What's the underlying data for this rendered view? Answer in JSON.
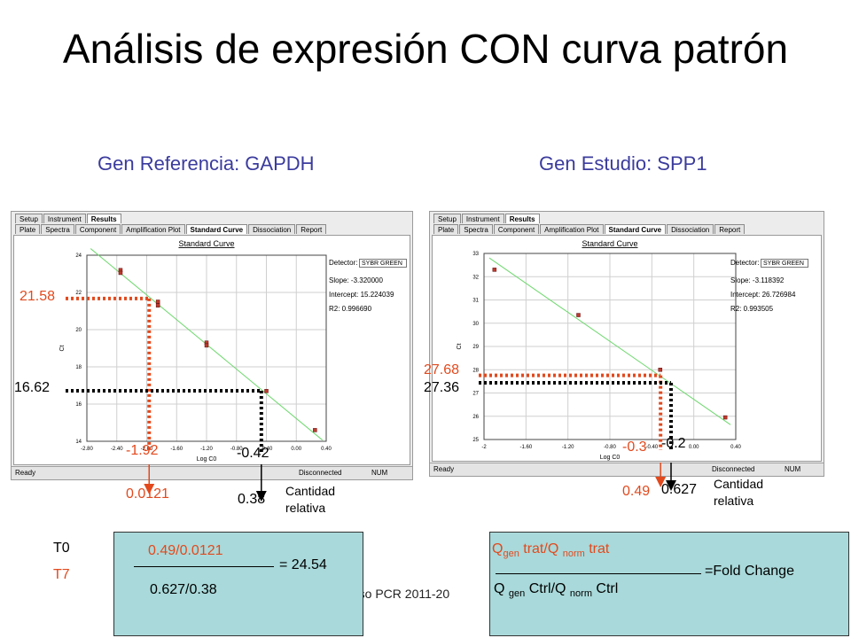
{
  "slide": {
    "title": "Análisis de expresión CON curva patrón",
    "subtitle_left": "Gen Referencia: GAPDH",
    "subtitle_right": "Gen Estudio: SPP1",
    "footer_partial": "rso PCR 2011-20"
  },
  "colors": {
    "regression_line": "#6fd86f",
    "data_point": "#c0392b",
    "annotation_red": "#e2491d",
    "annotation_black": "#000000",
    "formula_bg": "#a9d9da",
    "subtitle": "#3b3b9e"
  },
  "software": {
    "tabs_row1": [
      "Setup",
      "Instrument",
      "Results"
    ],
    "tabs_row2": [
      "Plate",
      "Spectra",
      "Component",
      "Amplification Plot",
      "Standard Curve",
      "Dissociation",
      "Report"
    ],
    "active_tab": "Standard Curve",
    "chart_title": "Standard Curve",
    "status_ready": "Ready",
    "status_disconnected": "Disconnected",
    "status_num": "NUM"
  },
  "annotations_left": {
    "ct_treated": "21.58",
    "ct_control": "16.62",
    "logc0_treated": "-1.92",
    "logc0_control": "-0.42",
    "qty_treated": "0.0121",
    "qty_control": "0.38",
    "relative_qty_label": "Cantidad relativa"
  },
  "annotations_right": {
    "ct_treated": "27.68",
    "ct_control": "27.36",
    "logc0_treated": "-0.3",
    "logc0_control": "-0.2",
    "qty_treated": "0.49",
    "qty_control": "0.627",
    "relative_qty_label": "Cantidad relativa"
  },
  "legend_times": {
    "t0": "T0",
    "t7": "T7"
  },
  "formula_left": {
    "numerator": "0.49/0.0121",
    "denominator": "0.627/0.38",
    "result": "= 24.54"
  },
  "formula_right": {
    "num_Q": "Q",
    "num_gen": "gen",
    "num_mid": " trat/Q ",
    "num_norm": "norm",
    "num_end": " trat",
    "den_Q": "Q ",
    "den_gen": "gen",
    "den_mid": " Ctrl/Q ",
    "den_norm": "norm",
    "den_end": " Ctrl",
    "result": "=Fold Change"
  },
  "chart_data": [
    {
      "type": "scatter",
      "title": "Standard Curve",
      "xlabel": "Log C0",
      "ylabel": "Ct",
      "xlim": [
        -2.8,
        0.4
      ],
      "ylim": [
        14,
        24
      ],
      "xticks": [
        -2.8,
        -2.4,
        -2.0,
        -1.6,
        -1.2,
        -0.8,
        -0.4,
        0.0,
        0.4
      ],
      "xtick_labels": [
        "-2.80",
        "-2.40",
        "-2.00",
        "-1.60",
        "-1.20",
        "-0.80",
        "-0.40",
        "0.00",
        "0.40"
      ],
      "yticks": [
        14,
        16,
        18,
        20,
        22,
        24
      ],
      "grid": true,
      "detector": "SYBR GREEN",
      "slope": "Slope: -3.320000",
      "intercept": "Intercept: 15.224039",
      "r2": "R2: 0.996690",
      "points": [
        {
          "x": -2.35,
          "y": 23.2
        },
        {
          "x": -2.35,
          "y": 23.05
        },
        {
          "x": -1.85,
          "y": 21.5
        },
        {
          "x": -1.85,
          "y": 21.3
        },
        {
          "x": -1.2,
          "y": 19.3
        },
        {
          "x": -1.2,
          "y": 19.15
        },
        {
          "x": -0.4,
          "y": 16.7
        },
        {
          "x": 0.25,
          "y": 14.6
        }
      ],
      "fit": {
        "slope": -3.32,
        "intercept": 15.224039
      },
      "annotations": [
        {
          "color": "red",
          "x": -1.92,
          "y": 21.58
        },
        {
          "color": "black",
          "x": -0.42,
          "y": 16.62
        }
      ]
    },
    {
      "type": "scatter",
      "title": "Standard Curve",
      "xlabel": "Log C0",
      "ylabel": "Ct",
      "xlim": [
        -2.0,
        0.4
      ],
      "ylim": [
        25,
        33
      ],
      "xticks": [
        -2.0,
        -1.6,
        -1.2,
        -0.8,
        -0.4,
        0.0,
        0.4
      ],
      "xtick_labels": [
        "-2",
        "-1.60",
        "-1.20",
        "-0.80",
        "-0.40",
        "0.00",
        "0.40"
      ],
      "yticks": [
        25,
        26,
        27,
        28,
        29,
        30,
        31,
        32,
        33
      ],
      "grid": true,
      "detector": "SYBR GREEN",
      "slope": "Slope: -3.118392",
      "intercept": "Intercept: 26.726984",
      "r2": "R2: 0.993505",
      "points": [
        {
          "x": -1.9,
          "y": 32.3
        },
        {
          "x": -1.1,
          "y": 30.35
        },
        {
          "x": -0.32,
          "y": 28.0
        },
        {
          "x": 0.3,
          "y": 25.95
        }
      ],
      "fit": {
        "slope": -3.118392,
        "intercept": 26.726984
      },
      "annotations": [
        {
          "color": "red",
          "x": -0.3,
          "y": 27.68
        },
        {
          "color": "black",
          "x": -0.2,
          "y": 27.36
        }
      ]
    }
  ]
}
